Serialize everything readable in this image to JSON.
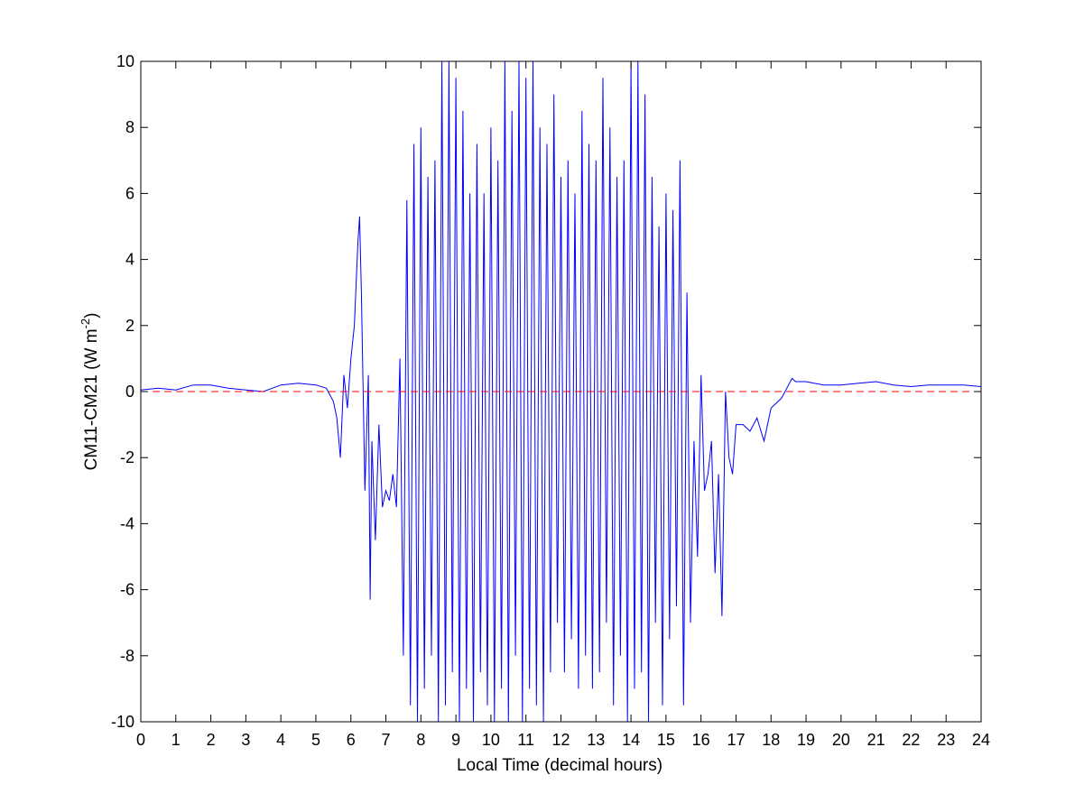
{
  "chart_data": {
    "type": "line",
    "title": "",
    "xlabel": "Local Time (decimal hours)",
    "ylabel": "CM11-CM21 (W m",
    "ylabel_superscript": "-2",
    "ylabel_suffix": ")",
    "xlim": [
      0,
      24
    ],
    "ylim": [
      -10,
      10
    ],
    "xticks": [
      0,
      1,
      2,
      3,
      4,
      5,
      6,
      7,
      8,
      9,
      10,
      11,
      12,
      13,
      14,
      15,
      16,
      17,
      18,
      19,
      20,
      21,
      22,
      23,
      24
    ],
    "yticks": [
      -10,
      -8,
      -6,
      -4,
      -2,
      0,
      2,
      4,
      6,
      8,
      10
    ],
    "grid": false,
    "legend": "none",
    "series": [
      {
        "color": "#0000ff",
        "x": [
          0,
          0.5,
          1,
          1.5,
          2,
          2.5,
          3,
          3.5,
          4,
          4.5,
          5,
          5.3,
          5.5,
          5.6,
          5.7,
          5.8,
          5.9,
          6.0,
          6.1,
          6.2,
          6.25,
          6.3,
          6.4,
          6.5,
          6.55,
          6.6,
          6.7,
          6.8,
          6.9,
          7.0,
          7.1,
          7.2,
          7.3,
          7.4,
          7.5,
          7.6,
          7.7,
          7.8,
          7.9,
          8.0,
          8.1,
          8.2,
          8.3,
          8.4,
          8.5,
          8.6,
          8.7,
          8.8,
          8.9,
          9.0,
          9.1,
          9.2,
          9.3,
          9.4,
          9.5,
          9.6,
          9.7,
          9.8,
          9.9,
          10.0,
          10.1,
          10.2,
          10.3,
          10.4,
          10.5,
          10.6,
          10.7,
          10.8,
          10.9,
          11.0,
          11.1,
          11.2,
          11.3,
          11.4,
          11.5,
          11.6,
          11.7,
          11.8,
          11.9,
          12.0,
          12.1,
          12.2,
          12.3,
          12.4,
          12.5,
          12.6,
          12.7,
          12.8,
          12.9,
          13.0,
          13.1,
          13.2,
          13.3,
          13.4,
          13.5,
          13.6,
          13.7,
          13.8,
          13.9,
          14.0,
          14.1,
          14.2,
          14.3,
          14.4,
          14.5,
          14.6,
          14.7,
          14.8,
          14.9,
          15.0,
          15.1,
          15.2,
          15.3,
          15.4,
          15.5,
          15.6,
          15.7,
          15.8,
          15.9,
          16.0,
          16.1,
          16.2,
          16.3,
          16.4,
          16.5,
          16.6,
          16.7,
          16.8,
          16.9,
          17.0,
          17.2,
          17.4,
          17.6,
          17.8,
          18.0,
          18.3,
          18.6,
          18.7,
          19,
          19.5,
          20,
          20.5,
          21,
          21.5,
          22,
          22.5,
          23,
          23.5,
          24
        ],
        "y": [
          0.05,
          0.1,
          0.05,
          0.2,
          0.2,
          0.1,
          0.05,
          0.0,
          0.2,
          0.25,
          0.2,
          0.1,
          -0.3,
          -0.8,
          -2.0,
          0.5,
          -0.5,
          1.0,
          2.0,
          4.5,
          5.3,
          3.0,
          -3.0,
          0.5,
          -6.3,
          -1.5,
          -4.5,
          -1.0,
          -3.5,
          -3.0,
          -3.3,
          -2.5,
          -3.5,
          1.0,
          -8.0,
          5.8,
          -9.5,
          7.5,
          -10,
          8.0,
          -9.0,
          6.5,
          -8.0,
          7.0,
          -10,
          10,
          -9.5,
          10,
          -8.5,
          9.5,
          -10,
          8.5,
          -9.0,
          6.0,
          -10,
          7.5,
          -8.5,
          6.0,
          -9.5,
          8.0,
          -10,
          7.0,
          -9.0,
          10,
          -10,
          8.5,
          -8.0,
          10,
          -10,
          9.5,
          -9.0,
          10,
          -9.5,
          8.0,
          -10,
          7.5,
          -8.5,
          9.0,
          -7.0,
          6.5,
          -8.5,
          7.0,
          -7.5,
          6.0,
          -9.0,
          8.5,
          -8.0,
          7.5,
          -9.0,
          7.0,
          -8.5,
          9.5,
          -7.0,
          8.0,
          -9.5,
          6.5,
          -8.0,
          7.0,
          -10,
          10,
          -9.0,
          10,
          -8.5,
          9.0,
          -10,
          6.5,
          -7.0,
          5.0,
          -9.5,
          6.0,
          -7.5,
          5.5,
          -6.5,
          7.0,
          -9.5,
          3.0,
          -7.0,
          -1.5,
          -5.0,
          0.5,
          -3.0,
          -2.5,
          -1.5,
          -5.5,
          -2.5,
          -6.8,
          0.0,
          -2.0,
          -2.5,
          -1.0,
          -1.0,
          -1.2,
          -0.8,
          -1.5,
          -0.5,
          -0.2,
          0.4,
          0.3,
          0.3,
          0.2,
          0.2,
          0.25,
          0.3,
          0.2,
          0.15,
          0.2,
          0.2,
          0.2,
          0.15
        ]
      },
      {
        "color": "#ff0000",
        "style": "dashed",
        "x": [
          0,
          24
        ],
        "y": [
          0,
          0
        ]
      }
    ]
  }
}
